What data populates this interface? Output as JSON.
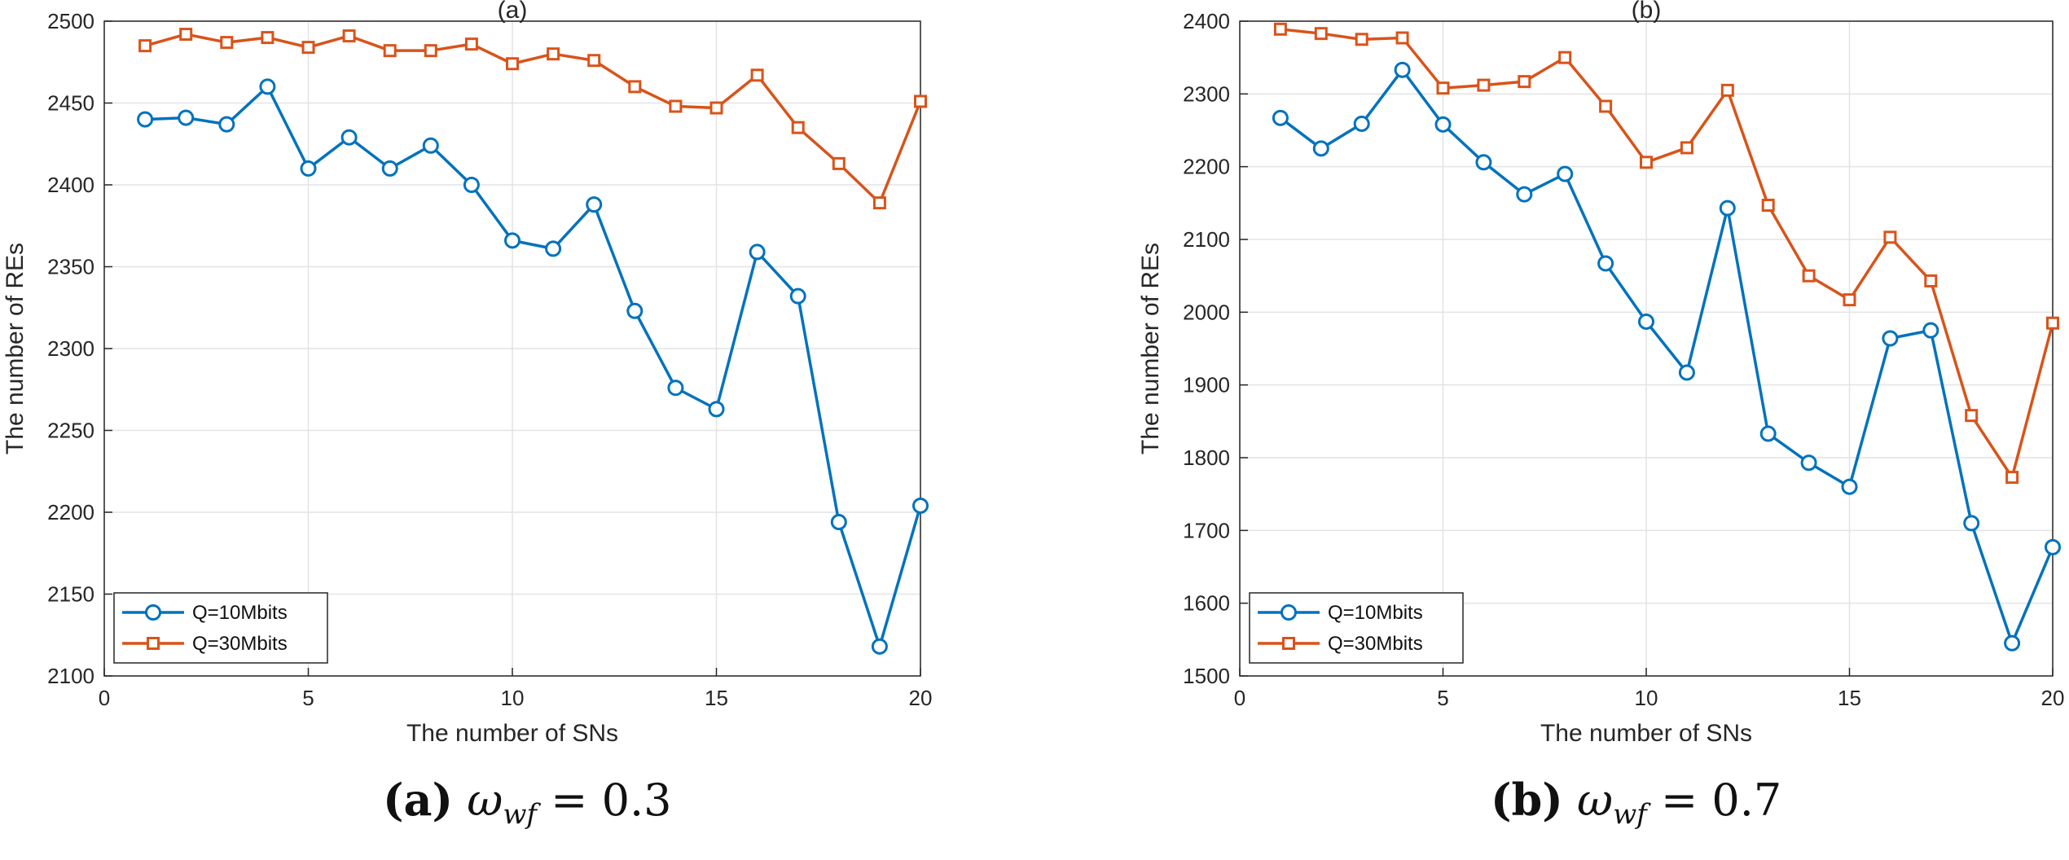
{
  "chart_data": [
    {
      "type": "line",
      "title": "(a)",
      "xlabel": "The number of SNs",
      "ylabel": "The number of REs",
      "xlim": [
        0,
        20
      ],
      "ylim": [
        2100,
        2500
      ],
      "xticks": [
        0,
        5,
        10,
        15,
        20
      ],
      "yticks": [
        2100,
        2150,
        2200,
        2250,
        2300,
        2350,
        2400,
        2450,
        2500
      ],
      "grid": true,
      "legend_position": "bottom-left",
      "x": [
        1,
        2,
        3,
        4,
        5,
        6,
        7,
        8,
        9,
        10,
        11,
        12,
        13,
        14,
        15,
        16,
        17,
        18,
        19,
        20
      ],
      "series": [
        {
          "name": "Q=10Mbits",
          "color": "#0072BD",
          "marker": "circle",
          "values": [
            2440,
            2441,
            2437,
            2460,
            2410,
            2429,
            2410,
            2424,
            2400,
            2366,
            2361,
            2388,
            2323,
            2276,
            2263,
            2359,
            2332,
            2194,
            2118,
            2204
          ]
        },
        {
          "name": "Q=30Mbits",
          "color": "#D95319",
          "marker": "square",
          "values": [
            2485,
            2492,
            2487,
            2490,
            2484,
            2491,
            2482,
            2482,
            2486,
            2474,
            2480,
            2476,
            2460,
            2448,
            2447,
            2467,
            2435,
            2413,
            2389,
            2451
          ]
        }
      ],
      "caption": {
        "label": "(a)",
        "symbol": "ω",
        "subscript": "wf",
        "relation": "= 0.3"
      }
    },
    {
      "type": "line",
      "title": "(b)",
      "xlabel": "The number of SNs",
      "ylabel": "The number of REs",
      "xlim": [
        0,
        20
      ],
      "ylim": [
        1500,
        2400
      ],
      "xticks": [
        0,
        5,
        10,
        15,
        20
      ],
      "yticks": [
        1500,
        1600,
        1700,
        1800,
        1900,
        2000,
        2100,
        2200,
        2300,
        2400
      ],
      "grid": true,
      "legend_position": "bottom-left",
      "x": [
        1,
        2,
        3,
        4,
        5,
        6,
        7,
        8,
        9,
        10,
        11,
        12,
        13,
        14,
        15,
        16,
        17,
        18,
        19,
        20
      ],
      "series": [
        {
          "name": "Q=10Mbits",
          "color": "#0072BD",
          "marker": "circle",
          "values": [
            2267,
            2225,
            2259,
            2333,
            2258,
            2206,
            2162,
            2190,
            2067,
            1987,
            1917,
            2143,
            1833,
            1793,
            1760,
            1964,
            1975,
            1710,
            1545,
            1677
          ]
        },
        {
          "name": "Q=30Mbits",
          "color": "#D95319",
          "marker": "square",
          "values": [
            2389,
            2383,
            2375,
            2377,
            2308,
            2312,
            2317,
            2350,
            2283,
            2206,
            2226,
            2305,
            2147,
            2050,
            2017,
            2103,
            2043,
            1858,
            1773,
            1985
          ]
        }
      ],
      "caption": {
        "label": "(b)",
        "symbol": "ω",
        "subscript": "wf",
        "relation": "= 0.7"
      }
    }
  ]
}
